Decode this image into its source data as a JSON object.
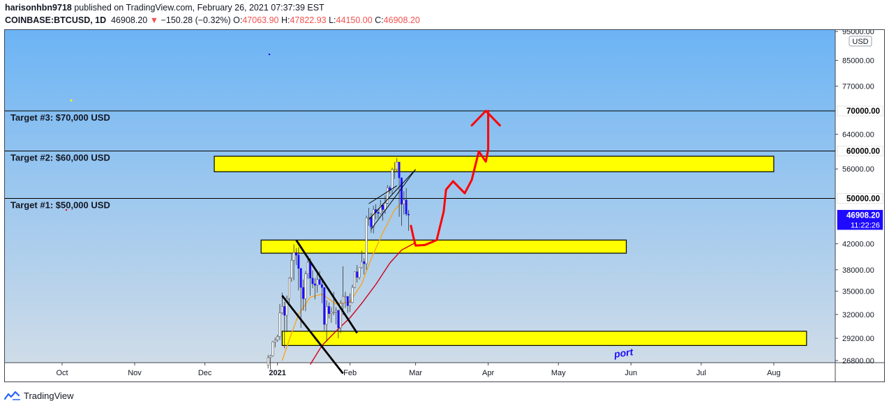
{
  "header": {
    "user": "harisonhbn9718",
    "published": "published on TradingView.com, February 26, 2021 07:37:39 EST",
    "symbol": "COINBASE:BTCUSD, 1D",
    "last": "46908.20",
    "change": "−150.28 (−0.32%)",
    "o_label": "O:",
    "o_value": "47063.90",
    "h_label": "H:",
    "h_value": "47822.93",
    "l_label": "L:",
    "l_value": "44150.00",
    "c_label": "C:",
    "c_value": "46908.20"
  },
  "footer": {
    "brand": "TradingView"
  },
  "chart_data": {
    "type": "candlestick",
    "currency_label": "USD",
    "y_scale": "log",
    "y_ticks": [
      {
        "value": 95000,
        "label": "95000.00"
      },
      {
        "value": 85000,
        "label": "85000.00"
      },
      {
        "value": 77000,
        "label": "77000.00"
      },
      {
        "value": 64000,
        "label": "64000.00"
      },
      {
        "value": 56000,
        "label": "56000.00"
      },
      {
        "value": 42000,
        "label": "42000.00"
      },
      {
        "value": 38000,
        "label": "38000.00"
      },
      {
        "value": 35000,
        "label": "35000.00"
      },
      {
        "value": 32000,
        "label": "32000.00"
      },
      {
        "value": 29200,
        "label": "29200.00"
      },
      {
        "value": 26800,
        "label": "26800.00"
      }
    ],
    "price_badges": [
      {
        "value": 70000,
        "label": "70000.00",
        "bg": "#ffffff",
        "fg": "#000000"
      },
      {
        "value": 60000,
        "label": "60000.00",
        "bg": "#ffffff",
        "fg": "#000000"
      },
      {
        "value": 50000,
        "label": "50000.00",
        "bg": "#ffffff",
        "fg": "#000000"
      },
      {
        "value": 46908.2,
        "label": "46908.20",
        "sublabel": "11:22:26",
        "bg": "#1e0bff",
        "fg": "#ffffff"
      }
    ],
    "x_ticks": [
      {
        "date": "2020-10-01",
        "label": "Oct",
        "bold": false
      },
      {
        "date": "2020-11-01",
        "label": "Nov",
        "bold": false
      },
      {
        "date": "2020-12-01",
        "label": "Dec",
        "bold": false
      },
      {
        "date": "2021-01-01",
        "label": "2021",
        "bold": true
      },
      {
        "date": "2021-02-01",
        "label": "Feb",
        "bold": false
      },
      {
        "date": "2021-03-01",
        "label": "Mar",
        "bold": false
      },
      {
        "date": "2021-04-01",
        "label": "Apr",
        "bold": false
      },
      {
        "date": "2021-05-01",
        "label": "May",
        "bold": false
      },
      {
        "date": "2021-06-01",
        "label": "Jun",
        "bold": false
      },
      {
        "date": "2021-07-01",
        "label": "Jul",
        "bold": false
      },
      {
        "date": "2021-08-01",
        "label": "Aug",
        "bold": false
      }
    ],
    "target_lines": [
      {
        "value": 70000,
        "label": "Target #3: $70,000 USD"
      },
      {
        "value": 60000,
        "label": "Target #2: $60,000 USD"
      },
      {
        "value": 50000,
        "label": "Target #1: $50,000 USD"
      }
    ],
    "zones": [
      {
        "from": "2020-12-05",
        "to": "2021-08-01",
        "high": 58800,
        "low": 55400
      },
      {
        "from": "2020-12-25",
        "to": "2021-05-30",
        "high": 42600,
        "low": 40500
      },
      {
        "from": "2021-01-03",
        "to": "2021-08-15",
        "high": 30000,
        "low": 28400
      }
    ],
    "candles_ohlc": [
      [
        "2020-12-28",
        26300,
        27400,
        26000,
        27100
      ],
      [
        "2020-12-29",
        27100,
        27400,
        25900,
        27300
      ],
      [
        "2020-12-30",
        27300,
        28900,
        27200,
        28800
      ],
      [
        "2020-12-31",
        28800,
        29300,
        28200,
        29000
      ],
      [
        "2021-01-01",
        29000,
        29600,
        28800,
        29400
      ],
      [
        "2021-01-02",
        29400,
        33300,
        29000,
        32200
      ],
      [
        "2021-01-03",
        32200,
        34800,
        32000,
        33000
      ],
      [
        "2021-01-04",
        33000,
        33600,
        28100,
        31900
      ],
      [
        "2021-01-05",
        31900,
        34400,
        29900,
        34000
      ],
      [
        "2021-01-06",
        34000,
        36900,
        33400,
        36800
      ],
      [
        "2021-01-07",
        36800,
        40400,
        36300,
        39400
      ],
      [
        "2021-01-08",
        39400,
        41900,
        36500,
        40600
      ],
      [
        "2021-01-09",
        40600,
        41300,
        38700,
        40200
      ],
      [
        "2021-01-10",
        40200,
        41400,
        35100,
        38200
      ],
      [
        "2021-01-11",
        38200,
        38200,
        30400,
        35500
      ],
      [
        "2021-01-12",
        35500,
        36600,
        32500,
        34000
      ],
      [
        "2021-01-13",
        34000,
        37800,
        32400,
        37400
      ],
      [
        "2021-01-14",
        37400,
        40100,
        36700,
        39100
      ],
      [
        "2021-01-15",
        39100,
        39700,
        34400,
        36800
      ],
      [
        "2021-01-16",
        36800,
        37900,
        35400,
        36000
      ],
      [
        "2021-01-17",
        36000,
        36800,
        33900,
        35800
      ],
      [
        "2021-01-18",
        35800,
        37400,
        34800,
        36600
      ],
      [
        "2021-01-19",
        36600,
        37800,
        35900,
        35900
      ],
      [
        "2021-01-20",
        35900,
        36400,
        33400,
        35500
      ],
      [
        "2021-01-21",
        35500,
        35500,
        30100,
        30800
      ],
      [
        "2021-01-22",
        30800,
        33800,
        28800,
        33000
      ],
      [
        "2021-01-23",
        33000,
        33500,
        31500,
        32100
      ],
      [
        "2021-01-24",
        32100,
        32900,
        31000,
        32300
      ],
      [
        "2021-01-25",
        32300,
        34900,
        31900,
        32300
      ],
      [
        "2021-01-26",
        32300,
        32900,
        30800,
        32500
      ],
      [
        "2021-01-27",
        32500,
        32600,
        29200,
        30400
      ],
      [
        "2021-01-28",
        30400,
        33800,
        29800,
        33400
      ],
      [
        "2021-01-29",
        33400,
        38500,
        31900,
        34300
      ],
      [
        "2021-01-30",
        34300,
        34900,
        32800,
        34300
      ],
      [
        "2021-01-31",
        34300,
        34300,
        32200,
        33100
      ],
      [
        "2021-02-01",
        33100,
        34700,
        32300,
        33500
      ],
      [
        "2021-02-02",
        33500,
        35900,
        33400,
        35500
      ],
      [
        "2021-02-03",
        35500,
        37700,
        35400,
        37700
      ],
      [
        "2021-02-04",
        37700,
        38700,
        36200,
        36900
      ],
      [
        "2021-02-05",
        36900,
        38300,
        36600,
        38300
      ],
      [
        "2021-02-06",
        38300,
        40900,
        38200,
        39200
      ],
      [
        "2021-02-07",
        39200,
        39700,
        37300,
        38900
      ],
      [
        "2021-02-08",
        38900,
        46800,
        38000,
        46400
      ],
      [
        "2021-02-09",
        46400,
        48200,
        45000,
        46500
      ],
      [
        "2021-02-10",
        46500,
        47300,
        43800,
        44800
      ],
      [
        "2021-02-11",
        44800,
        48600,
        43700,
        47900
      ],
      [
        "2021-02-12",
        47900,
        48900,
        46100,
        47400
      ],
      [
        "2021-02-13",
        47400,
        48100,
        46300,
        47200
      ],
      [
        "2021-02-14",
        47200,
        49700,
        47000,
        48700
      ],
      [
        "2021-02-15",
        48700,
        49000,
        45900,
        47900
      ],
      [
        "2021-02-16",
        47900,
        50600,
        47100,
        49100
      ],
      [
        "2021-02-17",
        49100,
        52600,
        48900,
        52100
      ],
      [
        "2021-02-18",
        52100,
        52500,
        50900,
        51600
      ],
      [
        "2021-02-19",
        51600,
        56300,
        50800,
        55900
      ],
      [
        "2021-02-20",
        55900,
        57500,
        53900,
        55900
      ],
      [
        "2021-02-21",
        55900,
        58400,
        55500,
        57500
      ],
      [
        "2021-02-22",
        57500,
        57500,
        46600,
        54100
      ],
      [
        "2021-02-23",
        54100,
        54200,
        45000,
        48900
      ],
      [
        "2021-02-24",
        48900,
        51400,
        47000,
        49700
      ],
      [
        "2021-02-25",
        49700,
        52000,
        46700,
        47100
      ],
      [
        "2021-02-26",
        47060,
        47820,
        44150,
        46908
      ]
    ],
    "moving_averages": [
      {
        "color": "#f5a623",
        "points": [
          [
            "2021-01-03",
            26800
          ],
          [
            "2021-01-06",
            29000
          ],
          [
            "2021-01-10",
            32000
          ],
          [
            "2021-01-15",
            34200
          ],
          [
            "2021-01-20",
            34600
          ],
          [
            "2021-01-26",
            33300
          ],
          [
            "2021-02-01",
            33600
          ],
          [
            "2021-02-06",
            36000
          ],
          [
            "2021-02-10",
            39600
          ],
          [
            "2021-02-15",
            43800
          ],
          [
            "2021-02-20",
            47800
          ],
          [
            "2021-02-23",
            49200
          ],
          [
            "2021-02-26",
            48900
          ]
        ]
      },
      {
        "color": "#d0021b",
        "points": [
          [
            "2021-01-15",
            26400
          ],
          [
            "2021-01-20",
            28400
          ],
          [
            "2021-01-26",
            30000
          ],
          [
            "2021-02-01",
            31600
          ],
          [
            "2021-02-06",
            33400
          ],
          [
            "2021-02-12",
            35900
          ],
          [
            "2021-02-18",
            39000
          ],
          [
            "2021-02-23",
            41000
          ],
          [
            "2021-03-01",
            42200
          ]
        ]
      }
    ],
    "channel_lines": [
      [
        [
          "2021-01-09",
          42600
        ],
        [
          "2021-02-04",
          29800
        ]
      ],
      [
        [
          "2021-01-03",
          34400
        ],
        [
          "2021-01-29",
          25500
        ]
      ]
    ],
    "wedge_lines": [
      [
        [
          "2021-02-09",
          46100
        ],
        [
          "2021-03-01",
          55900
        ]
      ],
      [
        [
          "2021-02-10",
          44400
        ],
        [
          "2021-03-01",
          55900
        ]
      ],
      [
        [
          "2021-02-09",
          49000
        ],
        [
          "2021-02-21",
          52500
        ]
      ]
    ],
    "projection_path": [
      [
        "2021-02-27",
        45000
      ],
      [
        "2021-02-28",
        43200
      ],
      [
        "2021-03-01",
        41700
      ],
      [
        "2021-03-05",
        41800
      ],
      [
        "2021-03-10",
        42600
      ],
      [
        "2021-03-13",
        47500
      ],
      [
        "2021-03-14",
        51700
      ],
      [
        "2021-03-17",
        53400
      ],
      [
        "2021-03-22",
        51000
      ],
      [
        "2021-03-25",
        53700
      ],
      [
        "2021-03-28",
        59900
      ],
      [
        "2021-03-31",
        57600
      ],
      [
        "2021-04-01",
        60300
      ],
      [
        "2021-04-01",
        70000
      ]
    ],
    "projection_arrowhead": [
      [
        "2021-03-25",
        66200
      ],
      [
        "2021-03-31",
        70000
      ],
      [
        "2021-04-06",
        66200
      ]
    ],
    "partial_text": {
      "text": "port",
      "date": "2021-05-25",
      "value": 27100
    }
  }
}
